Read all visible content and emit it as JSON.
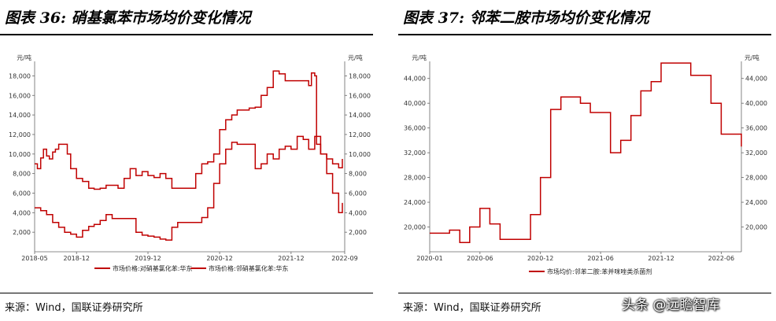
{
  "charts": [
    {
      "title": "图表 36: 硝基氯苯市场均价变化情况",
      "source": "来源：Wind，国联证券研究所"
    },
    {
      "title": "图表 37: 邻苯二胺市场均价变化情况",
      "source": "来源：Wind，国联证券研究所"
    }
  ],
  "watermark": "头条 @远瞻智库",
  "chart_data": [
    {
      "type": "line",
      "x_ticks": [
        "2018-05",
        "2018-12",
        "2019-12",
        "2020-12",
        "2021-12",
        "2022-09"
      ],
      "y_left": {
        "unit": "元/吨",
        "lim": [
          0,
          19000
        ],
        "ticks": [
          2000,
          4000,
          6000,
          8000,
          10000,
          12000,
          14000,
          16000,
          18000
        ],
        "tick_labels": [
          "2,000",
          "4,000",
          "6,000",
          "8,000",
          "10,000",
          "12,000",
          "14,000",
          "16,000",
          "18,000"
        ]
      },
      "y_right": {
        "unit": "元/吨",
        "lim": [
          0,
          19000
        ],
        "ticks": [
          2000,
          4000,
          6000,
          8000,
          10000,
          12000,
          14000,
          16000,
          18000
        ],
        "tick_labels": [
          "2,000",
          "4,000",
          "6,000",
          "8,000",
          "10,000",
          "12,000",
          "14,000",
          "16,000",
          "18,000"
        ]
      },
      "grid": false,
      "legend_position": "bottom",
      "series": [
        {
          "name": "市场价格:对硝基氯化苯:华东",
          "color": "#c00000",
          "points": [
            [
              "2018-05-01",
              9000
            ],
            [
              "2018-05-15",
              8500
            ],
            [
              "2018-06-01",
              9600
            ],
            [
              "2018-06-15",
              10500
            ],
            [
              "2018-07-01",
              9800
            ],
            [
              "2018-07-15",
              9500
            ],
            [
              "2018-08-01",
              10200
            ],
            [
              "2018-08-15",
              10500
            ],
            [
              "2018-09-01",
              11000
            ],
            [
              "2018-10-01",
              11000
            ],
            [
              "2018-10-15",
              10000
            ],
            [
              "2018-11-01",
              8500
            ],
            [
              "2018-12-01",
              7500
            ],
            [
              "2019-01-01",
              7200
            ],
            [
              "2019-02-01",
              6500
            ],
            [
              "2019-03-01",
              6400
            ],
            [
              "2019-04-01",
              6500
            ],
            [
              "2019-05-01",
              6800
            ],
            [
              "2019-06-01",
              6800
            ],
            [
              "2019-07-01",
              6500
            ],
            [
              "2019-08-01",
              7500
            ],
            [
              "2019-09-01",
              8500
            ],
            [
              "2019-10-01",
              7800
            ],
            [
              "2019-11-01",
              8200
            ],
            [
              "2019-12-01",
              7800
            ],
            [
              "2020-01-01",
              7600
            ],
            [
              "2020-02-01",
              8000
            ],
            [
              "2020-03-01",
              7500
            ],
            [
              "2020-04-01",
              6500
            ],
            [
              "2020-05-01",
              6500
            ],
            [
              "2020-06-01",
              6500
            ],
            [
              "2020-07-01",
              6500
            ],
            [
              "2020-08-01",
              8000
            ],
            [
              "2020-09-01",
              9000
            ],
            [
              "2020-10-01",
              9200
            ],
            [
              "2020-11-01",
              10000
            ],
            [
              "2020-12-01",
              12500
            ],
            [
              "2021-01-01",
              13500
            ],
            [
              "2021-02-01",
              14000
            ],
            [
              "2021-03-01",
              14500
            ],
            [
              "2021-04-01",
              14500
            ],
            [
              "2021-05-01",
              14700
            ],
            [
              "2021-06-01",
              14800
            ],
            [
              "2021-07-01",
              16000
            ],
            [
              "2021-08-01",
              16800
            ],
            [
              "2021-09-01",
              18500
            ],
            [
              "2021-10-01",
              18200
            ],
            [
              "2021-11-01",
              17500
            ],
            [
              "2021-12-01",
              17500
            ],
            [
              "2022-01-01",
              17500
            ],
            [
              "2022-02-01",
              17500
            ],
            [
              "2022-03-01",
              17000
            ],
            [
              "2022-03-15",
              18300
            ],
            [
              "2022-04-01",
              18000
            ],
            [
              "2022-04-10",
              11000
            ],
            [
              "2022-05-01",
              10000
            ],
            [
              "2022-06-01",
              9500
            ],
            [
              "2022-07-01",
              9000
            ],
            [
              "2022-08-01",
              8600
            ],
            [
              "2022-08-20",
              9500
            ]
          ]
        },
        {
          "name": "市场价格:邻硝基氯化苯:华东",
          "color": "#c00000",
          "points": [
            [
              "2018-05-01",
              4500
            ],
            [
              "2018-06-01",
              4200
            ],
            [
              "2018-07-01",
              3800
            ],
            [
              "2018-08-01",
              3000
            ],
            [
              "2018-09-01",
              2500
            ],
            [
              "2018-10-01",
              2000
            ],
            [
              "2018-11-01",
              1800
            ],
            [
              "2018-12-01",
              1500
            ],
            [
              "2019-01-01",
              2200
            ],
            [
              "2019-02-01",
              2600
            ],
            [
              "2019-03-01",
              2800
            ],
            [
              "2019-04-01",
              3200
            ],
            [
              "2019-05-01",
              3800
            ],
            [
              "2019-06-01",
              3400
            ],
            [
              "2019-07-01",
              3400
            ],
            [
              "2019-08-01",
              3400
            ],
            [
              "2019-09-01",
              3400
            ],
            [
              "2019-10-01",
              2000
            ],
            [
              "2019-11-01",
              1700
            ],
            [
              "2019-12-01",
              1600
            ],
            [
              "2020-01-01",
              1500
            ],
            [
              "2020-02-01",
              1300
            ],
            [
              "2020-03-01",
              1200
            ],
            [
              "2020-04-01",
              2500
            ],
            [
              "2020-05-01",
              3000
            ],
            [
              "2020-06-01",
              3000
            ],
            [
              "2020-07-01",
              3000
            ],
            [
              "2020-08-01",
              3000
            ],
            [
              "2020-09-01",
              3500
            ],
            [
              "2020-10-01",
              4500
            ],
            [
              "2020-11-01",
              7000
            ],
            [
              "2020-12-01",
              9000
            ],
            [
              "2021-01-01",
              10500
            ],
            [
              "2021-02-01",
              11200
            ],
            [
              "2021-03-01",
              11000
            ],
            [
              "2021-04-01",
              11000
            ],
            [
              "2021-05-01",
              11000
            ],
            [
              "2021-06-01",
              8500
            ],
            [
              "2021-07-01",
              9000
            ],
            [
              "2021-08-01",
              10000
            ],
            [
              "2021-09-01",
              9500
            ],
            [
              "2021-10-01",
              10500
            ],
            [
              "2021-11-01",
              10800
            ],
            [
              "2021-12-01",
              10500
            ],
            [
              "2022-01-01",
              11800
            ],
            [
              "2022-02-01",
              11500
            ],
            [
              "2022-03-01",
              10500
            ],
            [
              "2022-04-01",
              11800
            ],
            [
              "2022-05-01",
              10000
            ],
            [
              "2022-06-01",
              8000
            ],
            [
              "2022-07-01",
              6000
            ],
            [
              "2022-08-01",
              4000
            ],
            [
              "2022-08-20",
              5000
            ]
          ]
        }
      ]
    },
    {
      "type": "line",
      "x_ticks": [
        "2020-01",
        "2020-06",
        "2020-12",
        "2021-06",
        "2021-12",
        "2022-06"
      ],
      "y_left": {
        "unit": "元/吨",
        "lim": [
          16000,
          46000
        ],
        "ticks": [
          20000,
          24000,
          28000,
          32000,
          36000,
          40000,
          44000
        ],
        "tick_labels": [
          "20,000",
          "24,000",
          "28,000",
          "32,000",
          "36,000",
          "40,000",
          "44,000"
        ]
      },
      "y_right": {
        "unit": "元/吨",
        "lim": [
          16000,
          46000
        ],
        "ticks": [
          20000,
          24000,
          28000,
          32000,
          36000,
          40000,
          44000
        ],
        "tick_labels": [
          "20,000",
          "24,000",
          "28,000",
          "32,000",
          "36,000",
          "40,000",
          "44,000"
        ]
      },
      "grid": false,
      "legend_position": "bottom",
      "series": [
        {
          "name": "市场均价:邻苯二胺:苯并咪唑类杀菌剂",
          "color": "#c00000",
          "points": [
            [
              "2020-01-01",
              19000
            ],
            [
              "2020-02-01",
              19000
            ],
            [
              "2020-03-01",
              19500
            ],
            [
              "2020-04-01",
              17500
            ],
            [
              "2020-05-01",
              20000
            ],
            [
              "2020-06-01",
              23000
            ],
            [
              "2020-07-01",
              20500
            ],
            [
              "2020-08-01",
              18000
            ],
            [
              "2020-09-01",
              18000
            ],
            [
              "2020-10-01",
              18000
            ],
            [
              "2020-11-01",
              22000
            ],
            [
              "2020-12-01",
              28000
            ],
            [
              "2021-01-01",
              39000
            ],
            [
              "2021-02-01",
              41000
            ],
            [
              "2021-03-01",
              41000
            ],
            [
              "2021-04-01",
              40000
            ],
            [
              "2021-05-01",
              38500
            ],
            [
              "2021-06-01",
              38500
            ],
            [
              "2021-07-01",
              32000
            ],
            [
              "2021-08-01",
              34000
            ],
            [
              "2021-09-01",
              38000
            ],
            [
              "2021-10-01",
              42000
            ],
            [
              "2021-11-01",
              43500
            ],
            [
              "2021-12-01",
              46500
            ],
            [
              "2022-01-01",
              46500
            ],
            [
              "2022-02-01",
              46500
            ],
            [
              "2022-03-01",
              44500
            ],
            [
              "2022-04-01",
              44500
            ],
            [
              "2022-05-01",
              40000
            ],
            [
              "2022-06-01",
              35000
            ],
            [
              "2022-07-01",
              35000
            ],
            [
              "2022-08-01",
              33000
            ]
          ]
        }
      ]
    }
  ]
}
